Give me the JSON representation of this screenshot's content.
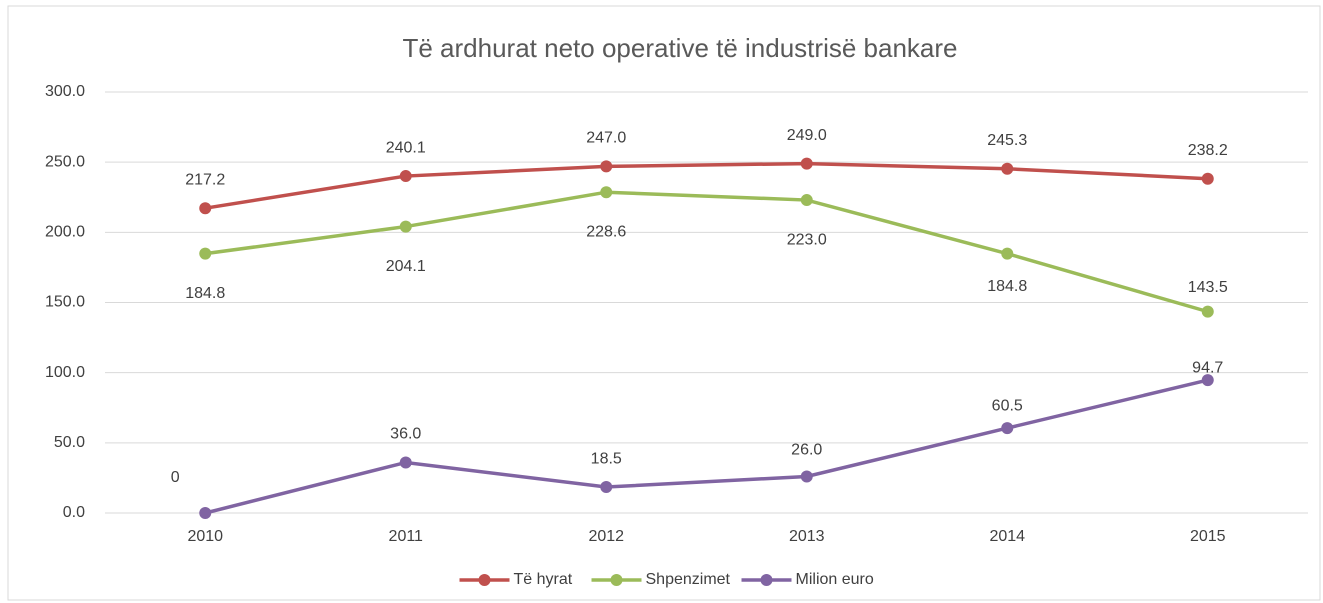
{
  "chart_data": {
    "type": "line",
    "title": "Të ardhurat neto operative të industrisë bankare",
    "categories": [
      "2010",
      "2011",
      "2012",
      "2013",
      "2014",
      "2015"
    ],
    "series": [
      {
        "name": "Të hyrat",
        "color": "#c0504d",
        "values": [
          217.2,
          240.1,
          247.0,
          249.0,
          245.3,
          238.2
        ],
        "value_labels": [
          "217.2",
          "240.1",
          "247.0",
          "249.0",
          "245.3",
          "238.2"
        ]
      },
      {
        "name": "Shpenzimet",
        "color": "#9bbb59",
        "values": [
          184.8,
          204.1,
          228.6,
          223.0,
          184.8,
          143.5
        ],
        "value_labels": [
          "184.8",
          "204.1",
          "228.6",
          "223.0",
          "184.8",
          "143.5"
        ]
      },
      {
        "name": "Milion euro",
        "color": "#8064a2",
        "values": [
          0,
          36.0,
          18.5,
          26.0,
          60.5,
          94.7
        ],
        "value_labels": [
          "0",
          "36.0",
          "18.5",
          "26.0",
          "60.5",
          "94.7"
        ]
      }
    ],
    "ylim": [
      0,
      300
    ],
    "yticks": [
      {
        "value": 0,
        "label": "0.0"
      },
      {
        "value": 50,
        "label": "50.0"
      },
      {
        "value": 100,
        "label": "100.0"
      },
      {
        "value": 150,
        "label": "150.0"
      },
      {
        "value": 200,
        "label": "200.0"
      },
      {
        "value": 250,
        "label": "250.0"
      },
      {
        "value": 300,
        "label": "300.0"
      }
    ],
    "grid": true
  }
}
